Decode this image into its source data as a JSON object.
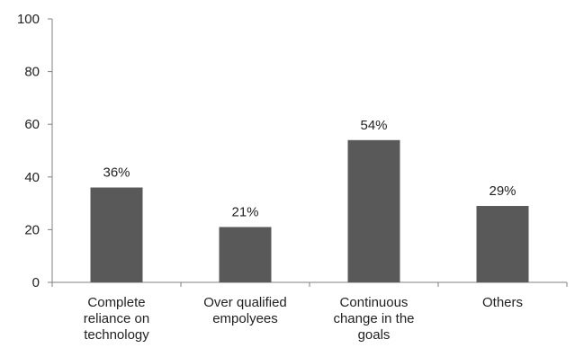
{
  "chart_data": {
    "type": "bar",
    "categories": [
      [
        "Complete",
        "reliance on",
        "technology"
      ],
      [
        "Over qualified",
        "empolyees"
      ],
      [
        "Continuous",
        "change in the",
        "goals"
      ],
      [
        "Others"
      ]
    ],
    "values": [
      36,
      21,
      54,
      29
    ],
    "data_labels": [
      "36%",
      "21%",
      "54%",
      "29%"
    ],
    "yticks": [
      "0",
      "20",
      "40",
      "60",
      "80",
      "100"
    ],
    "ylim": [
      0,
      100
    ],
    "bar_color": "#595959",
    "axis_color": "#808080",
    "grid": false,
    "legend": "none"
  }
}
